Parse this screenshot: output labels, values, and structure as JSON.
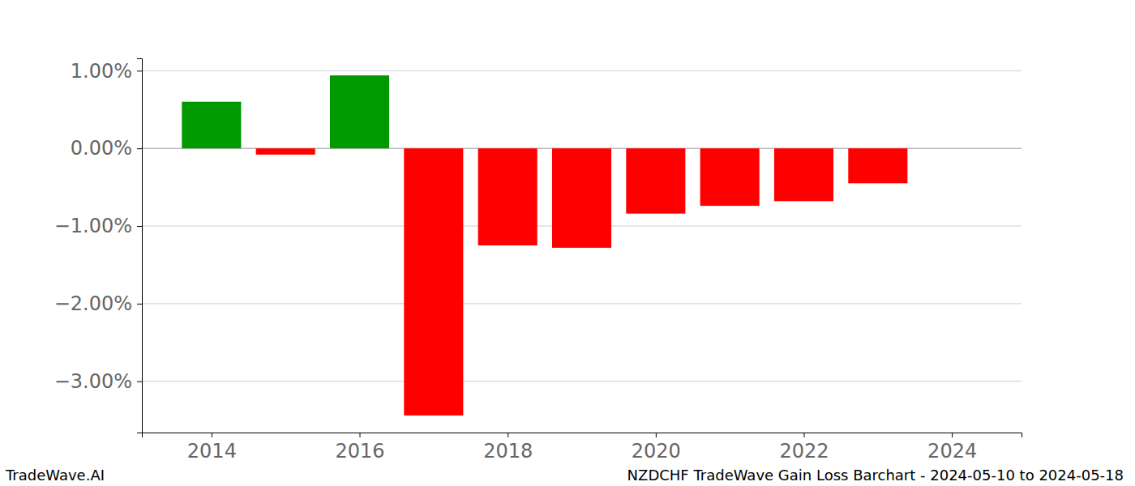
{
  "chart_data": {
    "type": "bar",
    "title": "NZDCHF TradeWave Gain Loss Barchart - 2024-05-10 to 2024-05-18",
    "annotations": [
      "TradeWave.AI"
    ],
    "x": [
      2014,
      2015,
      2016,
      2017,
      2018,
      2019,
      2020,
      2021,
      2022,
      2023,
      2024
    ],
    "values": [
      0.6,
      -0.08,
      0.94,
      -3.44,
      -1.25,
      -1.28,
      -0.84,
      -0.74,
      -0.68,
      -0.45,
      0
    ],
    "colors": [
      "#009900",
      "#ff0000",
      "#009900",
      "#ff0000",
      "#ff0000",
      "#ff0000",
      "#ff0000",
      "#ff0000",
      "#ff0000",
      "#ff0000",
      "#ff0000"
    ],
    "xlim": [
      2013.06,
      2024.94
    ],
    "xticks": [
      2014,
      2016,
      2018,
      2020,
      2022,
      2024
    ],
    "ylim": [
      -3.66,
      1.16
    ],
    "yticks": [
      {
        "value": 1,
        "label": "1.00%"
      },
      {
        "value": 0,
        "label": "0.00%"
      },
      {
        "value": -1,
        "label": "−1.00%"
      },
      {
        "value": -2,
        "label": "−2.00%"
      },
      {
        "value": -3,
        "label": "−3.00%"
      }
    ],
    "grid": true
  }
}
